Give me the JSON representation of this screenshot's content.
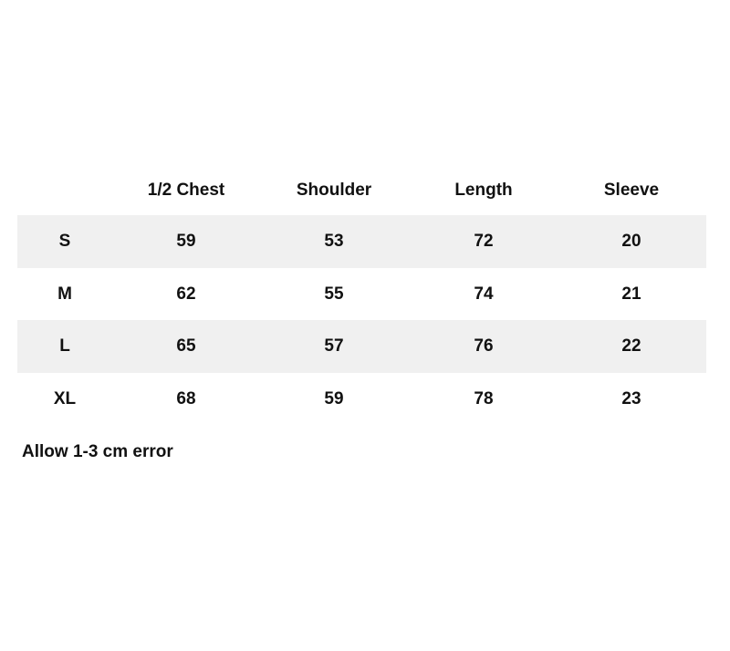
{
  "table": {
    "headers": [
      "",
      "1/2 Chest",
      "Shoulder",
      "Length",
      "Sleeve"
    ],
    "rows": [
      [
        "S",
        "59",
        "53",
        "72",
        "20"
      ],
      [
        "M",
        "62",
        "55",
        "74",
        "21"
      ],
      [
        "L",
        "65",
        "57",
        "76",
        "22"
      ],
      [
        "XL",
        "68",
        "59",
        "78",
        "23"
      ]
    ],
    "shade_color": "#f0f0f0"
  },
  "note": "Allow 1-3 cm error"
}
